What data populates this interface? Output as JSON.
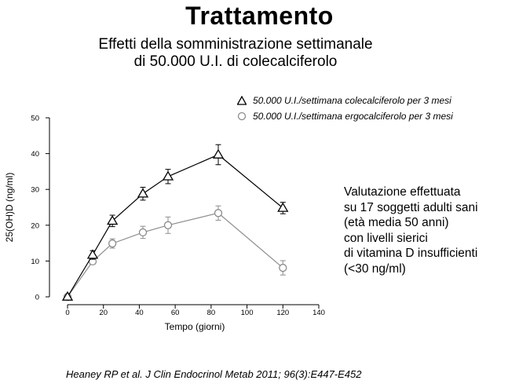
{
  "header": {
    "title": "Trattamento",
    "subtitle_line1": "Effetti della somministrazione settimanale",
    "subtitle_line2": "di 50.000 U.I. di colecalciferolo"
  },
  "side_note": {
    "lines": [
      "Valutazione effettuata",
      "su 17 soggetti adulti sani",
      "(età media 50 anni)",
      "con livelli sierici",
      "di vitamina D insufficienti",
      "(<30 ng/ml)"
    ]
  },
  "citation": "Heaney RP et al. J Clin Endocrinol Metab 2011; 96(3):E447-E452",
  "chart_data": {
    "type": "line",
    "xlabel": "Tempo (giorni)",
    "ylabel": "25(OH)D (ng/ml)",
    "xlim": [
      0,
      140
    ],
    "ylim": [
      0,
      50
    ],
    "xticks": [
      0,
      20,
      40,
      60,
      80,
      100,
      120,
      140
    ],
    "yticks": [
      0,
      10,
      20,
      30,
      40,
      50
    ],
    "grid": false,
    "legend_position": "top-right",
    "series": [
      {
        "name": "50.000 U.I./settimana colecalciferolo per 3 mesi",
        "marker": "triangle",
        "color": "#000000",
        "x": [
          0,
          14,
          25,
          42,
          56,
          84,
          120
        ],
        "y": [
          0,
          11.7,
          21.2,
          28.8,
          33.6,
          39.7,
          24.8
        ],
        "error": [
          0,
          1.2,
          1.6,
          1.8,
          2.0,
          2.8,
          1.6
        ]
      },
      {
        "name": "50.000 U.I./settimana ergocalciferolo per 3 mesi",
        "marker": "circle",
        "color": "#8c8c8c",
        "x": [
          0,
          14,
          25,
          42,
          56,
          84,
          120
        ],
        "y": [
          0,
          9.9,
          14.9,
          18.0,
          20.0,
          23.4,
          8.1
        ],
        "error": [
          0,
          0.8,
          1.3,
          1.7,
          2.3,
          2.0,
          2.0
        ]
      }
    ]
  }
}
